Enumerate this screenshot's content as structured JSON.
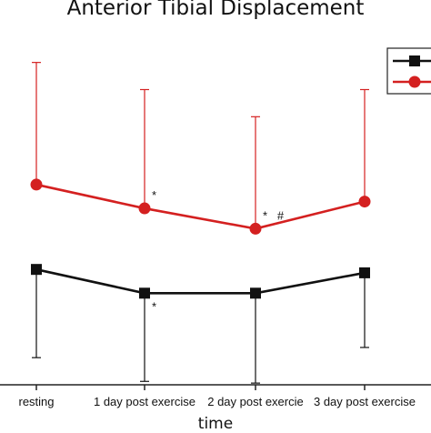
{
  "chart_data": {
    "type": "line",
    "title": "Anterior Tibial Displacement",
    "xlabel": "time",
    "ylabel": "",
    "categories": [
      "resting",
      "1 day post exercise",
      "2 day post exercie",
      "3 day post exercise"
    ],
    "ylim": [
      0,
      100
    ],
    "grid": false,
    "legend": "top-right",
    "series": [
      {
        "color": "#d42020",
        "marker": "circle",
        "values": [
          59,
          52,
          46,
          54
        ],
        "error_upper": [
          95,
          87,
          79,
          87
        ],
        "annotations": [
          "",
          "*",
          "*   #",
          ""
        ]
      },
      {
        "color": "#111111",
        "marker": "square",
        "values": [
          34,
          27,
          27,
          33
        ],
        "error_lower": [
          8,
          1,
          0.5,
          11
        ],
        "annotations": [
          "",
          "*",
          "",
          ""
        ]
      }
    ]
  }
}
